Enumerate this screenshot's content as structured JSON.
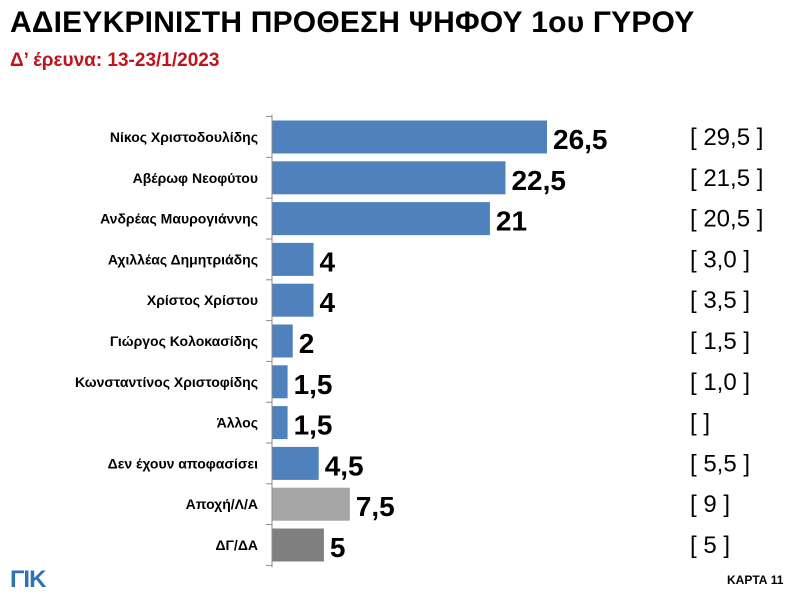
{
  "header": {
    "title": "ΑΔΙΕΥΚΡΙΝΙΣΤΗ ΠΡΟΘΕΣΗ ΨΗΦΟΥ 1ου ΓΥΡΟΥ",
    "subtitle": "Δ’ έρευνα: 13-23/1/2023"
  },
  "footer": {
    "logo": "ΓΙΚ",
    "card": "ΚΑΡΤΑ 11"
  },
  "colors": {
    "blue": "#4f81bd",
    "light_gray": "#a6a6a6",
    "dark_gray": "#7f7f7f",
    "title_red": "#c0141c",
    "logo_blue": "#2e73b8"
  },
  "chart_data": {
    "type": "bar",
    "orientation": "horizontal",
    "title": "ΑΔΙΕΥΚΡΙΝΙΣΤΗ ΠΡΟΘΕΣΗ ΨΗΦΟΥ 1ου ΓΥΡΟΥ",
    "subtitle": "Δ’ έρευνα: 13-23/1/2023",
    "categories": [
      "Νίκος Χριστοδουλίδης",
      "Αβέρωφ Νεοφύτου",
      "Ανδρέας Μαυρογιάννης",
      "Αχιλλέας Δημητριάδης",
      "Χρίστος Χρίστου",
      "Γιώργος Κολοκασίδης",
      "Κωνσταντίνος Χριστοφίδης",
      "Άλλος",
      "Δεν έχουν αποφασίσει",
      "Αποχή/Λ/Α",
      "ΔΓ/ΔΑ"
    ],
    "values": [
      26.5,
      22.5,
      21,
      4,
      4,
      2,
      1.5,
      1.5,
      4.5,
      7.5,
      5
    ],
    "value_labels": [
      "26,5",
      "22,5",
      "21",
      "4",
      "4",
      "2",
      "1,5",
      "1,5",
      "4,5",
      "7,5",
      "5"
    ],
    "previous_labels": [
      "[ 29,5 ]",
      "[ 21,5 ]",
      "[ 20,5 ]",
      "[ 3,0 ]",
      "[ 3,5 ]",
      "[ 1,5 ]",
      "[ 1,0 ]",
      "[  ]",
      "[ 5,5 ]",
      "[ 9 ]",
      "[ 5 ]"
    ],
    "bar_colors": [
      "blue",
      "blue",
      "blue",
      "blue",
      "blue",
      "blue",
      "blue",
      "blue",
      "blue",
      "light_gray",
      "dark_gray"
    ],
    "xlim": [
      0,
      26.5
    ],
    "grid": false,
    "legend": "none"
  }
}
